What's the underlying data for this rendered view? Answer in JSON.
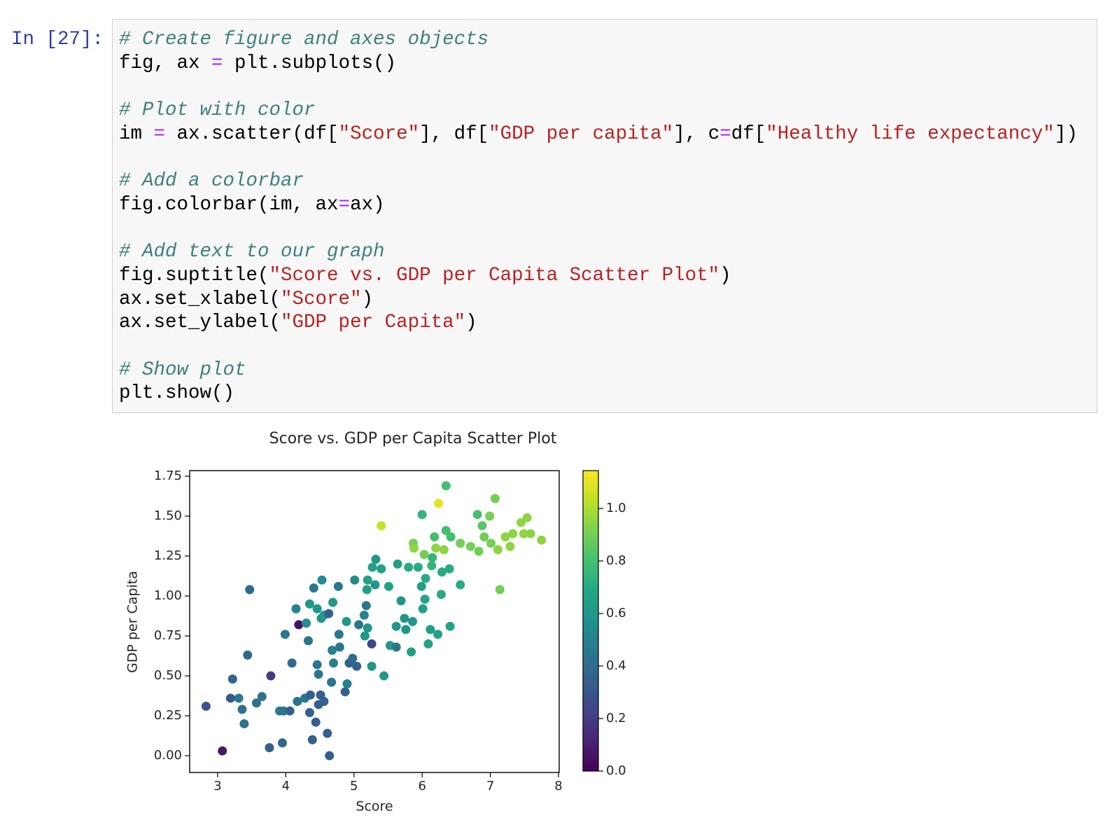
{
  "prompt": "In [27]:",
  "code": {
    "blocks": [
      [
        [
          {
            "text": "# Create figure and axes objects",
            "color": "#408080",
            "style": "italic"
          }
        ],
        [
          {
            "text": "fig, ax ",
            "color": "#000000"
          },
          {
            "text": "=",
            "color": "#AA22FF"
          },
          {
            "text": " plt.subplots()",
            "color": "#000000"
          }
        ]
      ],
      [
        [
          {
            "text": "# Plot with color",
            "color": "#408080",
            "style": "italic"
          }
        ],
        [
          {
            "text": "im ",
            "color": "#000000"
          },
          {
            "text": "=",
            "color": "#AA22FF"
          },
          {
            "text": " ax.scatter(df[",
            "color": "#000000"
          },
          {
            "text": "\"Score\"",
            "color": "#BA2121"
          },
          {
            "text": "], df[",
            "color": "#000000"
          },
          {
            "text": "\"GDP per capita\"",
            "color": "#BA2121"
          },
          {
            "text": "], c",
            "color": "#000000"
          },
          {
            "text": "=",
            "color": "#AA22FF"
          },
          {
            "text": "df[",
            "color": "#000000"
          },
          {
            "text": "\"Healthy life expectancy\"",
            "color": "#BA2121"
          },
          {
            "text": "])",
            "color": "#000000"
          }
        ]
      ],
      [
        [
          {
            "text": "# Add a colorbar",
            "color": "#408080",
            "style": "italic"
          }
        ],
        [
          {
            "text": "fig.colorbar(im, ax",
            "color": "#000000"
          },
          {
            "text": "=",
            "color": "#AA22FF"
          },
          {
            "text": "ax)",
            "color": "#000000"
          }
        ]
      ],
      [
        [
          {
            "text": "# Add text to our graph",
            "color": "#408080",
            "style": "italic"
          }
        ],
        [
          {
            "text": "fig.suptitle(",
            "color": "#000000"
          },
          {
            "text": "\"Score vs. GDP per Capita Scatter Plot\"",
            "color": "#BA2121"
          },
          {
            "text": ")",
            "color": "#000000"
          }
        ],
        [
          {
            "text": "ax.set_xlabel(",
            "color": "#000000"
          },
          {
            "text": "\"Score\"",
            "color": "#BA2121"
          },
          {
            "text": ")",
            "color": "#000000"
          }
        ],
        [
          {
            "text": "ax.set_ylabel(",
            "color": "#000000"
          },
          {
            "text": "\"GDP per Capita\"",
            "color": "#BA2121"
          },
          {
            "text": ")",
            "color": "#000000"
          }
        ]
      ],
      [
        [
          {
            "text": "# Show plot",
            "color": "#408080",
            "style": "italic"
          }
        ],
        [
          {
            "text": "plt.show()",
            "color": "#000000"
          }
        ]
      ]
    ]
  },
  "chart_data": {
    "type": "scatter",
    "title": "Score vs. GDP per Capita Scatter Plot",
    "xlabel": "Score",
    "ylabel": "GDP per Capita",
    "xlim": [
      2.59,
      8.01
    ],
    "ylim": [
      -0.105,
      1.785
    ],
    "xticks": [
      3,
      4,
      5,
      6,
      7,
      8
    ],
    "yticks": [
      {
        "value": 0,
        "label": "0.00"
      },
      {
        "value": 0.25,
        "label": "0.25"
      },
      {
        "value": 0.5,
        "label": "0.50"
      },
      {
        "value": 0.75,
        "label": "0.75"
      },
      {
        "value": 1,
        "label": "1.00"
      },
      {
        "value": 1.25,
        "label": "1.25"
      },
      {
        "value": 1.5,
        "label": "1.50"
      },
      {
        "value": 1.75,
        "label": "1.75"
      }
    ],
    "colormap": "viridis",
    "clim": [
      0,
      1.144
    ],
    "cticks": [
      {
        "value": 0,
        "label": "0.0"
      },
      {
        "value": 0.2,
        "label": "0.2"
      },
      {
        "value": 0.4,
        "label": "0.4"
      },
      {
        "value": 0.6,
        "label": "0.6"
      },
      {
        "value": 0.8,
        "label": "0.8"
      },
      {
        "value": 1,
        "label": "1.0"
      }
    ],
    "x": [
      2.83,
      3.07,
      3.19,
      3.22,
      3.31,
      3.36,
      3.39,
      3.44,
      3.47,
      3.57,
      3.65,
      3.76,
      3.78,
      3.91,
      3.95,
      3.99,
      3.97,
      4.06,
      4.09,
      4.15,
      4.19,
      4.17,
      4.28,
      4.3,
      4.33,
      4.35,
      4.35,
      4.36,
      4.39,
      4.41,
      4.44,
      4.46,
      4.46,
      4.48,
      4.48,
      4.51,
      4.53,
      4.52,
      4.56,
      4.56,
      4.61,
      4.63,
      4.64,
      4.67,
      4.68,
      4.69,
      4.7,
      4.77,
      4.79,
      4.78,
      4.87,
      4.89,
      4.9,
      4.93,
      4.98,
      5.01,
      5.04,
      5.07,
      5.15,
      5.16,
      5.18,
      5.2,
      5.19,
      5.2,
      5.26,
      5.26,
      5.27,
      5.31,
      5.32,
      5.4,
      5.4,
      5.44,
      5.51,
      5.53,
      5.62,
      5.62,
      5.64,
      5.69,
      5.74,
      5.76,
      5.8,
      5.84,
      5.86,
      5.87,
      5.88,
      5.94,
      5.99,
      6.0,
      6.01,
      6.04,
      6.05,
      6.03,
      6.09,
      6.12,
      6.14,
      6.15,
      6.18,
      6.2,
      6.23,
      6.24,
      6.28,
      6.29,
      6.32,
      6.35,
      6.35,
      6.4,
      6.41,
      6.42,
      6.56,
      6.56,
      6.71,
      6.81,
      6.83,
      6.88,
      6.91,
      6.99,
      7.01,
      7.07,
      7.11,
      7.14,
      7.22,
      7.29,
      7.33,
      7.45,
      7.49,
      7.54,
      7.59,
      7.75
    ],
    "y": [
      0.31,
      0.03,
      0.36,
      0.48,
      0.36,
      0.29,
      0.2,
      0.63,
      1.04,
      0.33,
      0.37,
      0.05,
      0.5,
      0.28,
      0.08,
      0.76,
      0.28,
      0.28,
      0.58,
      0.92,
      0.82,
      0.34,
      0.36,
      0.83,
      0.72,
      0.95,
      0.27,
      0.38,
      0.1,
      1.05,
      0.21,
      0.57,
      0.92,
      0.32,
      0.51,
      0.38,
      1.1,
      0.86,
      0.88,
      0.34,
      0.14,
      0.89,
      0.0,
      0.46,
      0.66,
      0.96,
      0.58,
      1.06,
      0.68,
      0.76,
      0.4,
      0.84,
      0.45,
      0.58,
      0.61,
      1.1,
      0.56,
      0.82,
      0.88,
      0.75,
      0.94,
      0.8,
      1.04,
      1.1,
      0.7,
      0.56,
      1.18,
      1.07,
      1.23,
      1.44,
      1.17,
      0.5,
      1.06,
      0.69,
      0.68,
      0.81,
      1.2,
      0.97,
      0.86,
      0.79,
      1.18,
      0.65,
      0.84,
      1.33,
      1.3,
      1.18,
      1.06,
      1.51,
      0.92,
      0.98,
      1.11,
      1.26,
      0.7,
      0.79,
      1.19,
      1.24,
      1.37,
      1.3,
      0.76,
      1.58,
      1.01,
      1.15,
      1.29,
      1.69,
      1.41,
      1.17,
      0.81,
      1.37,
      1.07,
      1.33,
      1.31,
      1.51,
      1.28,
      1.44,
      1.37,
      1.5,
      1.33,
      1.61,
      1.29,
      1.04,
      1.37,
      1.31,
      1.39,
      1.46,
      1.39,
      1.49,
      1.39,
      1.35
    ],
    "c": [
      0.3,
      0.08,
      0.32,
      0.38,
      0.45,
      0.42,
      0.42,
      0.38,
      0.4,
      0.42,
      0.42,
      0.35,
      0.2,
      0.45,
      0.38,
      0.45,
      0.45,
      0.35,
      0.38,
      0.5,
      0.05,
      0.45,
      0.45,
      0.55,
      0.45,
      0.6,
      0.35,
      0.35,
      0.35,
      0.45,
      0.35,
      0.45,
      0.6,
      0.35,
      0.45,
      0.35,
      0.55,
      0.6,
      0.6,
      0.35,
      0.35,
      0.35,
      0.35,
      0.45,
      0.5,
      0.6,
      0.5,
      0.45,
      0.45,
      0.45,
      0.35,
      0.6,
      0.5,
      0.35,
      0.4,
      0.55,
      0.35,
      0.45,
      0.5,
      0.6,
      0.45,
      0.6,
      0.65,
      0.65,
      0.25,
      0.6,
      0.65,
      0.6,
      0.6,
      1.05,
      0.65,
      0.6,
      0.65,
      0.6,
      0.45,
      0.6,
      0.65,
      0.6,
      0.6,
      0.6,
      0.7,
      0.65,
      0.6,
      0.9,
      0.95,
      0.7,
      0.65,
      0.75,
      0.65,
      0.65,
      0.7,
      0.9,
      0.65,
      0.65,
      0.75,
      0.75,
      0.8,
      0.95,
      0.65,
      1.1,
      0.7,
      0.7,
      0.95,
      0.8,
      0.8,
      0.7,
      0.65,
      0.8,
      0.7,
      0.9,
      0.9,
      0.8,
      0.9,
      0.85,
      0.9,
      0.9,
      0.9,
      0.9,
      0.95,
      0.9,
      0.95,
      0.95,
      0.95,
      0.95,
      0.95,
      0.95,
      0.95,
      0.95
    ]
  }
}
